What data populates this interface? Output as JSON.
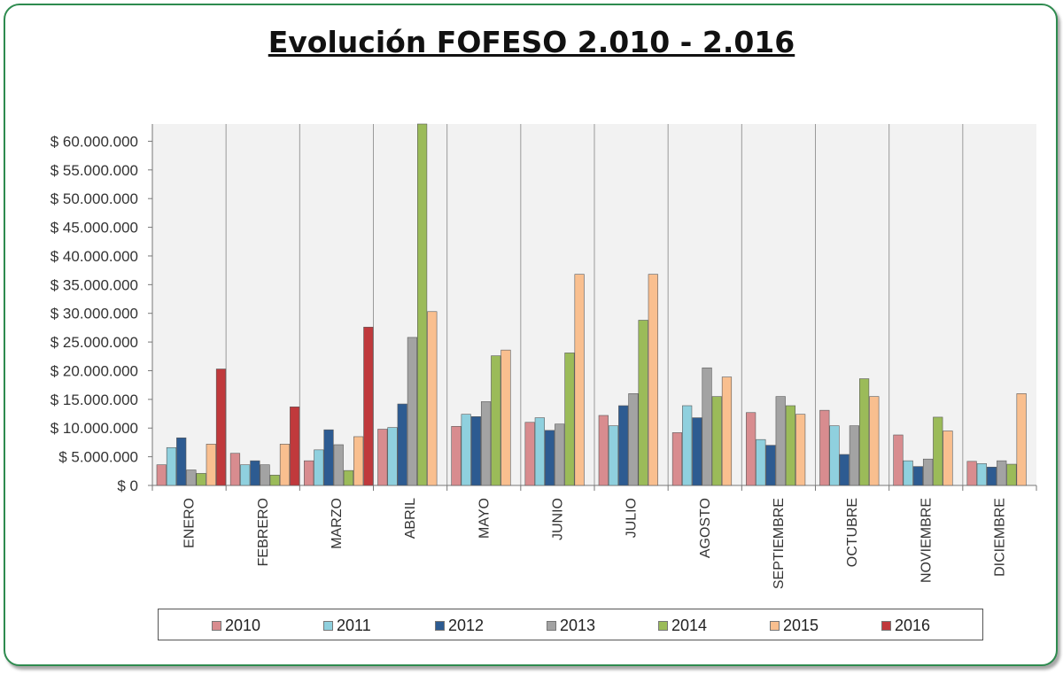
{
  "chart_data": {
    "type": "bar",
    "title": "Evolución FOFESO 2.010 - 2.016",
    "categories": [
      "ENERO",
      "FEBRERO",
      "MARZO",
      "ABRIL",
      "MAYO",
      "JUNIO",
      "JULIO",
      "AGOSTO",
      "SEPTIEMBRE",
      "OCTUBRE",
      "NOVIEMBRE",
      "DICIEMBRE"
    ],
    "ylim": [
      0,
      63000000
    ],
    "yticks": [
      0,
      5000000,
      10000000,
      15000000,
      20000000,
      25000000,
      30000000,
      35000000,
      40000000,
      45000000,
      50000000,
      55000000,
      60000000
    ],
    "ytick_labels": [
      "$ 0",
      "$ 5.000.000",
      "$ 10.000.000",
      "$ 15.000.000",
      "$ 20.000.000",
      "$ 25.000.000",
      "$ 30.000.000",
      "$ 35.000.000",
      "$ 40.000.000",
      "$ 45.000.000",
      "$ 50.000.000",
      "$ 55.000.000",
      "$ 60.000.000"
    ],
    "grid": "vertical category separators",
    "legend_position": "bottom",
    "series": [
      {
        "name": "2010",
        "color": "#d88c8f",
        "values": [
          3600000,
          5600000,
          4300000,
          9800000,
          10300000,
          11000000,
          12200000,
          9200000,
          12700000,
          13100000,
          8800000,
          4200000
        ]
      },
      {
        "name": "2011",
        "color": "#8fd0de",
        "values": [
          6600000,
          3600000,
          6200000,
          10100000,
          12400000,
          11800000,
          10400000,
          13900000,
          8000000,
          10400000,
          4300000,
          3800000
        ]
      },
      {
        "name": "2012",
        "color": "#2d5b91",
        "values": [
          8300000,
          4300000,
          9700000,
          14200000,
          12000000,
          9600000,
          13900000,
          11800000,
          7000000,
          5400000,
          3300000,
          3200000
        ]
      },
      {
        "name": "2013",
        "color": "#a3a3a3",
        "values": [
          2700000,
          3600000,
          7100000,
          25800000,
          14600000,
          10700000,
          16000000,
          20500000,
          15500000,
          10400000,
          4600000,
          4300000
        ]
      },
      {
        "name": "2014",
        "color": "#9bbb59",
        "values": [
          2100000,
          1800000,
          2600000,
          63000000,
          22600000,
          23100000,
          28800000,
          15500000,
          13900000,
          18600000,
          11900000,
          3700000
        ]
      },
      {
        "name": "2015",
        "color": "#f9bf8f",
        "values": [
          7200000,
          7200000,
          8500000,
          30300000,
          23600000,
          36800000,
          36800000,
          18900000,
          12400000,
          15500000,
          9500000,
          16000000
        ]
      },
      {
        "name": "2016",
        "color": "#c0393c",
        "values": [
          20300000,
          13700000,
          27600000,
          null,
          null,
          null,
          null,
          null,
          null,
          null,
          null,
          null
        ]
      }
    ]
  }
}
